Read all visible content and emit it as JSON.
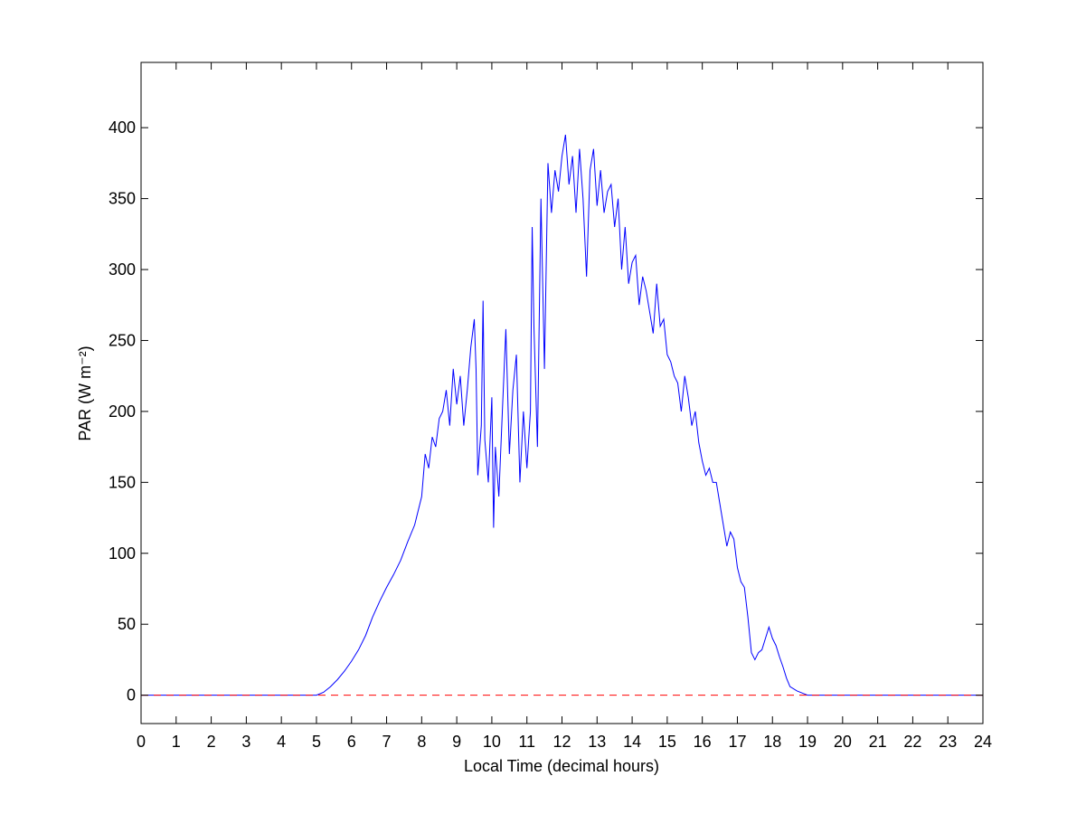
{
  "chart_data": {
    "type": "line",
    "xlabel": "Local Time (decimal hours)",
    "ylabel": "PAR (W m⁻²)",
    "xlim": [
      0,
      24
    ],
    "ylim": [
      -20,
      446
    ],
    "xticks": [
      0,
      1,
      2,
      3,
      4,
      5,
      6,
      7,
      8,
      9,
      10,
      11,
      12,
      13,
      14,
      15,
      16,
      17,
      18,
      19,
      20,
      21,
      22,
      23,
      24
    ],
    "yticks": [
      0,
      50,
      100,
      150,
      200,
      250,
      300,
      350,
      400
    ],
    "series": [
      {
        "color": "#0000ff",
        "dashed": false,
        "x": [
          0,
          5,
          5.2,
          5.4,
          5.6,
          5.8,
          6.0,
          6.2,
          6.4,
          6.6,
          6.8,
          7.0,
          7.2,
          7.4,
          7.6,
          7.8,
          8.0,
          8.1,
          8.2,
          8.3,
          8.4,
          8.5,
          8.6,
          8.7,
          8.8,
          8.9,
          9.0,
          9.1,
          9.2,
          9.3,
          9.4,
          9.5,
          9.55,
          9.6,
          9.7,
          9.75,
          9.8,
          9.9,
          10.0,
          10.05,
          10.1,
          10.2,
          10.3,
          10.4,
          10.5,
          10.6,
          10.7,
          10.8,
          10.9,
          11.0,
          11.1,
          11.15,
          11.2,
          11.3,
          11.4,
          11.5,
          11.6,
          11.7,
          11.8,
          11.9,
          12.0,
          12.1,
          12.2,
          12.3,
          12.4,
          12.5,
          12.6,
          12.7,
          12.8,
          12.9,
          13.0,
          13.1,
          13.2,
          13.3,
          13.4,
          13.5,
          13.6,
          13.7,
          13.8,
          13.9,
          14.0,
          14.1,
          14.2,
          14.3,
          14.4,
          14.5,
          14.6,
          14.7,
          14.8,
          14.9,
          15.0,
          15.1,
          15.2,
          15.3,
          15.4,
          15.5,
          15.6,
          15.7,
          15.8,
          15.9,
          16.0,
          16.1,
          16.2,
          16.3,
          16.4,
          16.5,
          16.6,
          16.7,
          16.8,
          16.9,
          17.0,
          17.1,
          17.2,
          17.3,
          17.4,
          17.5,
          17.6,
          17.7,
          17.8,
          17.9,
          18.0,
          18.1,
          18.2,
          18.3,
          18.4,
          18.5,
          18.7,
          18.9,
          19.0,
          24
        ],
        "values": [
          0,
          0,
          2,
          6,
          11,
          17,
          24,
          32,
          42,
          55,
          66,
          76,
          85,
          95,
          108,
          120,
          140,
          170,
          160,
          182,
          175,
          195,
          200,
          215,
          190,
          230,
          205,
          225,
          190,
          215,
          245,
          265,
          230,
          155,
          190,
          278,
          180,
          150,
          210,
          118,
          175,
          140,
          200,
          258,
          170,
          215,
          240,
          150,
          200,
          160,
          200,
          330,
          260,
          175,
          350,
          230,
          375,
          340,
          370,
          355,
          380,
          395,
          360,
          380,
          340,
          385,
          350,
          295,
          370,
          385,
          345,
          370,
          340,
          355,
          360,
          330,
          350,
          300,
          330,
          290,
          305,
          310,
          275,
          295,
          285,
          270,
          255,
          290,
          260,
          265,
          240,
          235,
          225,
          220,
          200,
          225,
          210,
          190,
          200,
          178,
          165,
          155,
          160,
          150,
          150,
          135,
          120,
          105,
          115,
          110,
          90,
          80,
          76,
          55,
          30,
          25,
          30,
          32,
          40,
          48,
          40,
          35,
          27,
          20,
          12,
          6,
          3,
          1,
          0,
          0
        ]
      },
      {
        "color": "#ff0000",
        "dashed": true,
        "x": [
          0,
          24
        ],
        "values": [
          0,
          0
        ]
      }
    ]
  }
}
